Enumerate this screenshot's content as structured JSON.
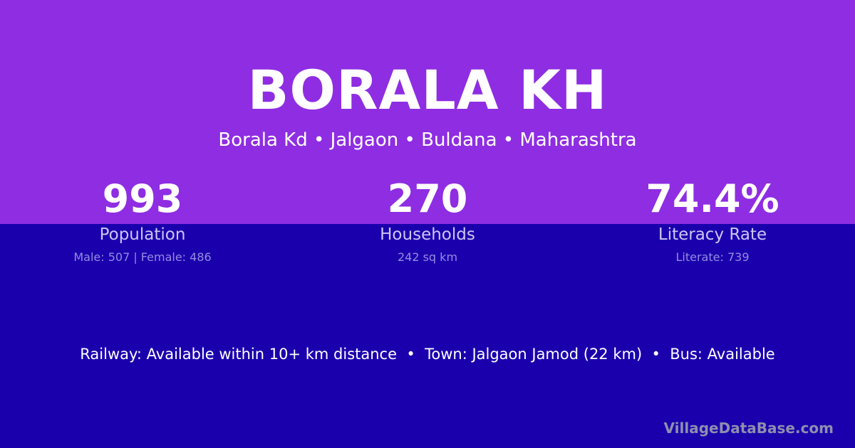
{
  "title": "BORALA KH",
  "location": "Borala Kd • Jalgaon • Buldana • Maharashtra",
  "stats": [
    {
      "value": "993",
      "label": "Population",
      "sub": "Male: 507 | Female: 486"
    },
    {
      "value": "270",
      "label": "Households",
      "sub": "242 sq km"
    },
    {
      "value": "74.4%",
      "label": "Literacy Rate",
      "sub": "Literate: 739"
    }
  ],
  "info": "Railway: Available within 10+ km distance  •  Town: Jalgaon Jamod (22 km)  •  Bus: Available",
  "brand": "VillageDataBase.com",
  "colors": {
    "top_bg": "#8e2de2",
    "bottom_bg": "#1a00ad"
  }
}
